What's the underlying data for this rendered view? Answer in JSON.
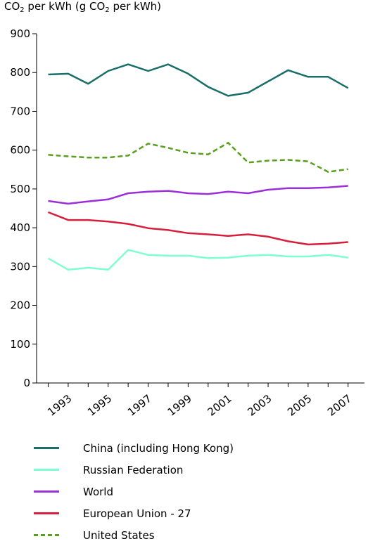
{
  "chart_data": {
    "type": "line",
    "title": "",
    "ylabel_parts": [
      "CO",
      "2",
      " per kWh (g CO",
      "2",
      " per kWh)"
    ],
    "xlabel": "",
    "ylim": [
      0,
      900
    ],
    "yticks": [
      0,
      100,
      200,
      300,
      400,
      500,
      600,
      700,
      800,
      900
    ],
    "x": [
      1992,
      1993,
      1994,
      1995,
      1996,
      1997,
      1998,
      1999,
      2000,
      2001,
      2002,
      2003,
      2004,
      2005,
      2006,
      2007
    ],
    "xtick_labels": [
      "1993",
      "1995",
      "1997",
      "1999",
      "2001",
      "2003",
      "2005",
      "2007"
    ],
    "grid": false,
    "legend_position": "bottom",
    "series": [
      {
        "name": "China (including Hong Kong)",
        "color": "#1a6e69",
        "dash": "solid",
        "values": [
          795,
          797,
          771,
          804,
          821,
          804,
          821,
          797,
          763,
          740,
          748,
          777,
          806,
          789,
          789,
          760
        ]
      },
      {
        "name": "Russian Federation",
        "color": "#7fffd0",
        "dash": "solid",
        "values": [
          321,
          292,
          297,
          292,
          343,
          330,
          328,
          328,
          322,
          323,
          328,
          330,
          326,
          326,
          330,
          323
        ]
      },
      {
        "name": "World",
        "color": "#9b30d9",
        "dash": "solid",
        "values": [
          469,
          462,
          468,
          473,
          489,
          493,
          495,
          489,
          487,
          493,
          489,
          498,
          502,
          502,
          504,
          508
        ]
      },
      {
        "name": "European Union - 27",
        "color": "#d61f3c",
        "dash": "solid",
        "values": [
          440,
          420,
          420,
          416,
          410,
          399,
          394,
          386,
          383,
          379,
          383,
          377,
          365,
          357,
          359,
          363
        ]
      },
      {
        "name": "United States",
        "color": "#5a9e1e",
        "dash": "dashed",
        "values": [
          588,
          584,
          581,
          581,
          586,
          617,
          606,
          593,
          589,
          619,
          568,
          573,
          575,
          571,
          544,
          551
        ]
      }
    ]
  }
}
